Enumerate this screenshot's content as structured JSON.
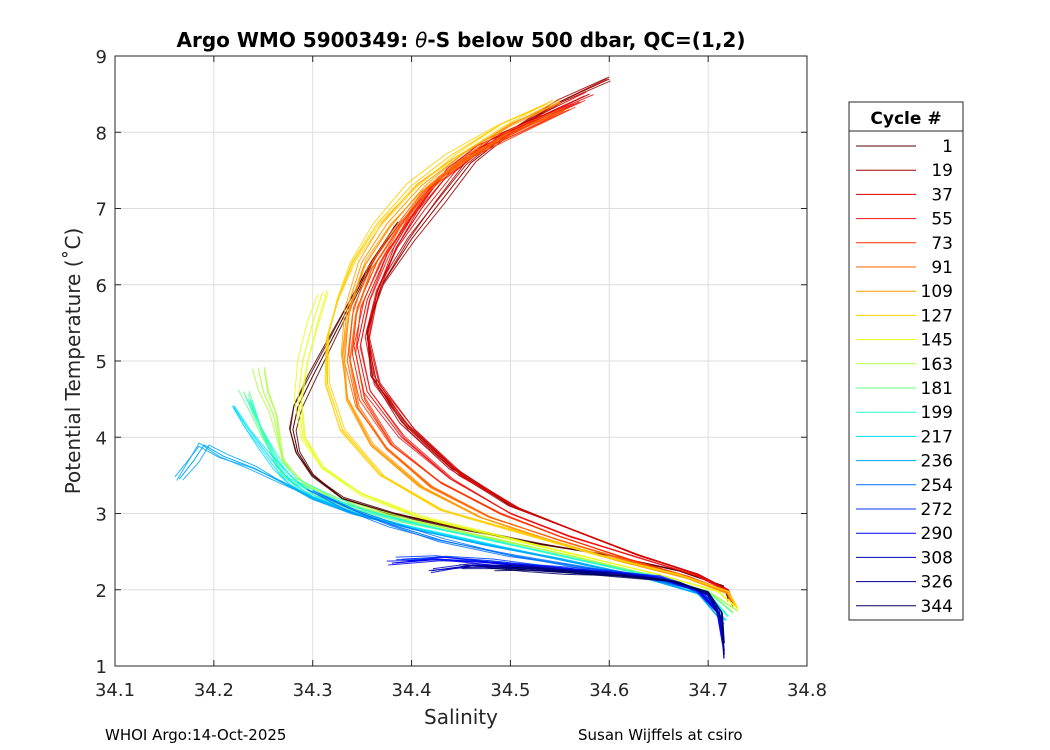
{
  "chart_data": {
    "type": "line",
    "title": "Argo WMO 5900349: θ-S below 500 dbar,  QC=(1,2)",
    "title_parts": {
      "prefix": "Argo WMO 5900349: ",
      "symbol": "θ",
      "suffix": "-S below 500 dbar,  QC=(1,2)"
    },
    "xlabel": "Salinity",
    "ylabel": "Potential Temperature (˚C)",
    "xlim": [
      34.1,
      34.8
    ],
    "ylim": [
      1,
      9
    ],
    "xticks": [
      34.1,
      34.2,
      34.3,
      34.4,
      34.5,
      34.6,
      34.7,
      34.8
    ],
    "xtick_labels": [
      "34.1",
      "34.2",
      "34.3",
      "34.4",
      "34.5",
      "34.6",
      "34.7",
      "34.8"
    ],
    "yticks": [
      1,
      2,
      3,
      4,
      5,
      6,
      7,
      8,
      9
    ],
    "ytick_labels": [
      "1",
      "2",
      "3",
      "4",
      "5",
      "6",
      "7",
      "8",
      "9"
    ],
    "grid": true,
    "legend": {
      "title": "Cycle #",
      "placement": "right, outside axes",
      "entries": [
        {
          "label": "1",
          "color": "#500000"
        },
        {
          "label": "19",
          "color": "#a00000"
        },
        {
          "label": "37",
          "color": "#d80000"
        },
        {
          "label": "55",
          "color": "#f01010"
        },
        {
          "label": "73",
          "color": "#ff3000"
        },
        {
          "label": "91",
          "color": "#ff6400"
        },
        {
          "label": "109",
          "color": "#ff9a00"
        },
        {
          "label": "127",
          "color": "#ffd000"
        },
        {
          "label": "145",
          "color": "#e6ff14"
        },
        {
          "label": "163",
          "color": "#aaff40"
        },
        {
          "label": "181",
          "color": "#64ff8a"
        },
        {
          "label": "199",
          "color": "#28ffd0"
        },
        {
          "label": "217",
          "color": "#00e0ff"
        },
        {
          "label": "236",
          "color": "#00a8ff"
        },
        {
          "label": "254",
          "color": "#0070ff"
        },
        {
          "label": "272",
          "color": "#0034ff"
        },
        {
          "label": "290",
          "color": "#0000f0"
        },
        {
          "label": "308",
          "color": "#0000c0"
        },
        {
          "label": "326",
          "color": "#000090"
        },
        {
          "label": "344",
          "color": "#000060"
        }
      ]
    },
    "series": [
      {
        "name": "1",
        "color": "#500000",
        "x": [
          34.385,
          34.36,
          34.34,
          34.32,
          34.3,
          34.285,
          34.28,
          34.285,
          34.3,
          34.33,
          34.38,
          34.45,
          34.53,
          34.6,
          34.67,
          34.715,
          34.72
        ],
        "y": [
          6.8,
          6.3,
          5.8,
          5.3,
          4.8,
          4.4,
          4.1,
          3.8,
          3.5,
          3.2,
          3.0,
          2.8,
          2.6,
          2.45,
          2.25,
          2.05,
          1.9
        ]
      },
      {
        "name": "19",
        "color": "#a00000",
        "x": [
          34.6,
          34.55,
          34.5,
          34.46,
          34.43,
          34.4,
          34.37,
          34.355,
          34.36,
          34.39,
          34.44,
          34.5,
          34.56,
          34.63,
          34.69,
          34.72,
          34.72
        ],
        "y": [
          8.7,
          8.4,
          8.0,
          7.6,
          7.1,
          6.6,
          6.0,
          5.4,
          4.8,
          4.2,
          3.6,
          3.1,
          2.8,
          2.45,
          2.2,
          2.0,
          1.85
        ]
      },
      {
        "name": "37",
        "color": "#d80000",
        "x": [
          34.58,
          34.53,
          34.48,
          34.44,
          34.41,
          34.385,
          34.365,
          34.355,
          34.365,
          34.4,
          34.45,
          34.51,
          34.57,
          34.63,
          34.69,
          34.72,
          34.725
        ],
        "y": [
          8.5,
          8.2,
          7.9,
          7.5,
          7.0,
          6.5,
          5.9,
          5.3,
          4.7,
          4.1,
          3.5,
          3.05,
          2.75,
          2.45,
          2.2,
          2.0,
          1.85
        ]
      },
      {
        "name": "55",
        "color": "#f01010",
        "x": [
          34.57,
          34.52,
          34.47,
          34.43,
          34.4,
          34.375,
          34.355,
          34.345,
          34.355,
          34.39,
          34.44,
          34.5,
          34.56,
          34.63,
          34.69,
          34.72,
          34.725
        ],
        "y": [
          8.4,
          8.1,
          7.8,
          7.4,
          6.9,
          6.4,
          5.8,
          5.2,
          4.6,
          4.0,
          3.45,
          3.0,
          2.7,
          2.42,
          2.18,
          1.98,
          1.82
        ]
      },
      {
        "name": "73",
        "color": "#ff3000",
        "x": [
          34.56,
          34.51,
          34.46,
          34.42,
          34.39,
          34.365,
          34.345,
          34.34,
          34.35,
          34.38,
          34.43,
          34.49,
          34.55,
          34.62,
          34.68,
          34.72,
          34.725
        ],
        "y": [
          8.3,
          8.0,
          7.7,
          7.3,
          6.8,
          6.3,
          5.7,
          5.1,
          4.5,
          3.9,
          3.4,
          3.0,
          2.7,
          2.4,
          2.17,
          1.97,
          1.8
        ]
      },
      {
        "name": "91",
        "color": "#ff6400",
        "x": [
          34.555,
          34.5,
          34.45,
          34.41,
          34.38,
          34.355,
          34.34,
          34.335,
          34.345,
          34.375,
          34.42,
          34.48,
          34.55,
          34.62,
          34.68,
          34.72,
          34.725
        ],
        "y": [
          8.3,
          8.0,
          7.6,
          7.2,
          6.7,
          6.2,
          5.6,
          5.0,
          4.4,
          3.85,
          3.35,
          2.95,
          2.65,
          2.38,
          2.15,
          1.95,
          1.78
        ]
      },
      {
        "name": "109",
        "color": "#ff9a00",
        "x": [
          34.55,
          34.5,
          34.45,
          34.41,
          34.375,
          34.35,
          34.335,
          34.33,
          34.335,
          34.36,
          34.41,
          34.47,
          34.54,
          34.61,
          34.68,
          34.72,
          34.728
        ],
        "y": [
          8.4,
          8.1,
          7.7,
          7.3,
          6.8,
          6.3,
          5.7,
          5.1,
          4.5,
          3.9,
          3.35,
          2.95,
          2.65,
          2.38,
          2.15,
          1.95,
          1.78
        ]
      },
      {
        "name": "127",
        "color": "#ffd000",
        "x": [
          34.54,
          34.49,
          34.44,
          34.4,
          34.365,
          34.34,
          34.325,
          34.315,
          34.315,
          34.33,
          34.37,
          34.43,
          34.51,
          34.59,
          34.67,
          34.72,
          34.73
        ],
        "y": [
          8.4,
          8.1,
          7.7,
          7.3,
          6.8,
          6.3,
          5.8,
          5.3,
          4.7,
          4.1,
          3.5,
          3.05,
          2.75,
          2.45,
          2.2,
          1.98,
          1.75
        ]
      },
      {
        "name": "145",
        "color": "#e6ff14",
        "x": [
          34.31,
          34.3,
          34.29,
          34.285,
          34.29,
          34.31,
          34.35,
          34.41,
          34.49,
          34.57,
          34.65,
          34.71,
          34.73
        ],
        "y": [
          5.9,
          5.5,
          5.0,
          4.5,
          4.0,
          3.6,
          3.25,
          2.95,
          2.7,
          2.45,
          2.2,
          1.98,
          1.75
        ]
      },
      {
        "name": "163",
        "color": "#aaff40",
        "x": [
          34.245,
          34.25,
          34.26,
          34.265,
          34.27,
          34.29,
          34.33,
          34.4,
          34.48,
          34.56,
          34.64,
          34.7,
          34.73
        ],
        "y": [
          4.9,
          4.6,
          4.3,
          4.0,
          3.7,
          3.4,
          3.15,
          2.9,
          2.68,
          2.45,
          2.2,
          1.98,
          1.72
        ]
      },
      {
        "name": "181",
        "color": "#64ff8a",
        "x": [
          34.23,
          34.24,
          34.25,
          34.26,
          34.27,
          34.29,
          34.33,
          34.39,
          34.47,
          34.55,
          34.64,
          34.7,
          34.725
        ],
        "y": [
          4.6,
          4.3,
          4.0,
          3.75,
          3.5,
          3.3,
          3.1,
          2.9,
          2.68,
          2.45,
          2.2,
          1.97,
          1.7
        ]
      },
      {
        "name": "199",
        "color": "#28ffd0",
        "x": [
          34.235,
          34.245,
          34.255,
          34.265,
          34.28,
          34.31,
          34.35,
          34.41,
          34.48,
          34.56,
          34.64,
          34.7,
          34.72
        ],
        "y": [
          4.5,
          4.2,
          3.95,
          3.7,
          3.45,
          3.25,
          3.05,
          2.85,
          2.65,
          2.42,
          2.18,
          1.95,
          1.65
        ]
      },
      {
        "name": "217",
        "color": "#00e0ff",
        "x": [
          34.22,
          34.235,
          34.25,
          34.265,
          34.28,
          34.3,
          34.34,
          34.4,
          34.47,
          34.55,
          34.63,
          34.69,
          34.718
        ],
        "y": [
          4.4,
          4.1,
          3.85,
          3.6,
          3.4,
          3.22,
          3.02,
          2.82,
          2.62,
          2.4,
          2.18,
          1.95,
          1.6
        ]
      },
      {
        "name": "236",
        "color": "#00a8ff",
        "x": [
          34.165,
          34.18,
          34.19,
          34.21,
          34.24,
          34.27,
          34.3,
          34.34,
          34.4,
          34.47,
          34.55,
          34.63,
          34.69,
          34.716
        ],
        "y": [
          3.45,
          3.7,
          3.9,
          3.75,
          3.6,
          3.4,
          3.2,
          3.0,
          2.8,
          2.6,
          2.4,
          2.18,
          1.95,
          1.55
        ]
      },
      {
        "name": "254",
        "color": "#0070ff",
        "x": [
          34.3,
          34.34,
          34.38,
          34.43,
          34.5,
          34.57,
          34.63,
          34.68,
          34.705,
          34.715
        ],
        "y": [
          3.3,
          3.05,
          2.85,
          2.65,
          2.45,
          2.3,
          2.18,
          2.02,
          1.85,
          1.5
        ]
      },
      {
        "name": "272",
        "color": "#0034ff",
        "x": [
          34.39,
          34.43,
          34.48,
          34.54,
          34.6,
          34.65,
          34.69,
          34.71,
          34.715
        ],
        "y": [
          2.4,
          2.43,
          2.38,
          2.3,
          2.24,
          2.17,
          2.0,
          1.75,
          1.3
        ]
      },
      {
        "name": "290",
        "color": "#0000f0",
        "x": [
          34.38,
          34.43,
          34.48,
          34.54,
          34.6,
          34.65,
          34.69,
          34.71,
          34.716
        ],
        "y": [
          2.35,
          2.4,
          2.35,
          2.28,
          2.22,
          2.15,
          1.98,
          1.7,
          1.2
        ]
      },
      {
        "name": "308",
        "color": "#0000c0",
        "x": [
          34.42,
          34.46,
          34.51,
          34.56,
          34.61,
          34.66,
          34.7,
          34.714,
          34.716
        ],
        "y": [
          2.25,
          2.32,
          2.3,
          2.25,
          2.2,
          2.12,
          1.95,
          1.6,
          1.1
        ]
      },
      {
        "name": "326",
        "color": "#000090",
        "x": [
          34.45,
          34.49,
          34.53,
          34.58,
          34.63,
          34.67,
          34.7,
          34.714,
          34.716
        ],
        "y": [
          2.3,
          2.3,
          2.27,
          2.22,
          2.17,
          2.1,
          1.93,
          1.6,
          1.15
        ]
      },
      {
        "name": "344",
        "color": "#000060",
        "x": [
          34.48,
          34.52,
          34.56,
          34.61,
          34.66,
          34.7,
          34.714,
          34.716
        ],
        "y": [
          2.28,
          2.26,
          2.22,
          2.18,
          2.12,
          1.97,
          1.7,
          1.3
        ]
      }
    ]
  },
  "footer": {
    "left": "WHOI Argo:14-Oct-2025",
    "right": "Susan Wijffels at csiro"
  }
}
